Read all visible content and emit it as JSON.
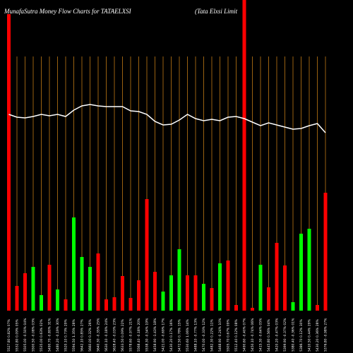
{
  "chart_data": {
    "type": "bar",
    "title": "MunafaSutra  Money Flow  Charts for TATAELXSI",
    "subtitle": "(Tata  Elxsi  Limit",
    "background": "#000000",
    "grid": true,
    "grid_color": "#c07a16",
    "line_color": "#ffffff",
    "categories": [
      "5527.80 0.82% 07%",
      "5532.80 0.09% 05%",
      "5505.00 -0.50% 04%",
      "5500.50 -0.08% 03%",
      "5535.00 0.63% 02%",
      "5490.70 -0.80% 31%",
      "5480.20 -0.19% 30%",
      "5520.10 0.73% 29%",
      "5594.50 1.35% 28%",
      "5642.10 0.85% 27%",
      "5660.00 0.32% 26%",
      "5640.30 -0.35% 25%",
      "5630.10 -0.18% 24%",
      "5628.40 -0.03% 23%",
      "5633.50 0.09% 22%",
      "5578.60 -0.97% 21%",
      "5568.40 -0.18% 20%",
      "5538.30 -0.54% 19%",
      "5458.90 -1.43% 18%",
      "5421.00 -0.69% 17%",
      "5430.20 0.17% 16%",
      "5472.50 0.78% 15%",
      "5530.60 1.06% 14%",
      "5488.10 -0.77% 13%",
      "5470.00 -0.33% 12%",
      "5482.30 0.22% 11%",
      "5468.90 -0.24% 10%",
      "5505.70 0.67% 09%",
      "5512.40 0.12% 08%",
      "5490.60 -0.40% 07%",
      "5450.10 -0.74% 06%",
      "5415.30 -0.64% 05%",
      "5445.80 0.56% 04%",
      "5420.20 -0.47% 03%",
      "5399.90 -0.37% 02%",
      "5380.40 -0.36% 01%",
      "5386.70 0.12% 30%",
      "5410.50 0.44% 29%",
      "5430.20 0.36% 28%",
      "5376.80 -0.98% 27%"
    ],
    "values": [
      420,
      35,
      53,
      62,
      22,
      65,
      30,
      16,
      132,
      76,
      62,
      81,
      16,
      19,
      49,
      18,
      43,
      158,
      55,
      27,
      50,
      87,
      50,
      50,
      38,
      32,
      67,
      71,
      8,
      440,
      4,
      65,
      33,
      96,
      64,
      12,
      109,
      116,
      8,
      167
    ],
    "bar_colors": [
      "red",
      "red",
      "red",
      "lime",
      "lime",
      "red",
      "lime",
      "red",
      "lime",
      "lime",
      "lime",
      "red",
      "red",
      "red",
      "red",
      "red",
      "red",
      "red",
      "red",
      "lime",
      "lime",
      "lime",
      "red",
      "red",
      "lime",
      "red",
      "lime",
      "red",
      "red",
      "red",
      "red",
      "lime",
      "red",
      "red",
      "red",
      "lime",
      "lime",
      "lime",
      "red",
      "red"
    ],
    "line_values": [
      278,
      274,
      273,
      275,
      278,
      276,
      278,
      275,
      284,
      290,
      292,
      290,
      289,
      289,
      289,
      283,
      282,
      278,
      268,
      263,
      264,
      270,
      278,
      272,
      269,
      271,
      269,
      274,
      275,
      272,
      267,
      262,
      266,
      263,
      260,
      257,
      258,
      262,
      265,
      252
    ],
    "ylim": [
      0,
      420
    ],
    "y2lim": [
      0,
      440
    ]
  }
}
